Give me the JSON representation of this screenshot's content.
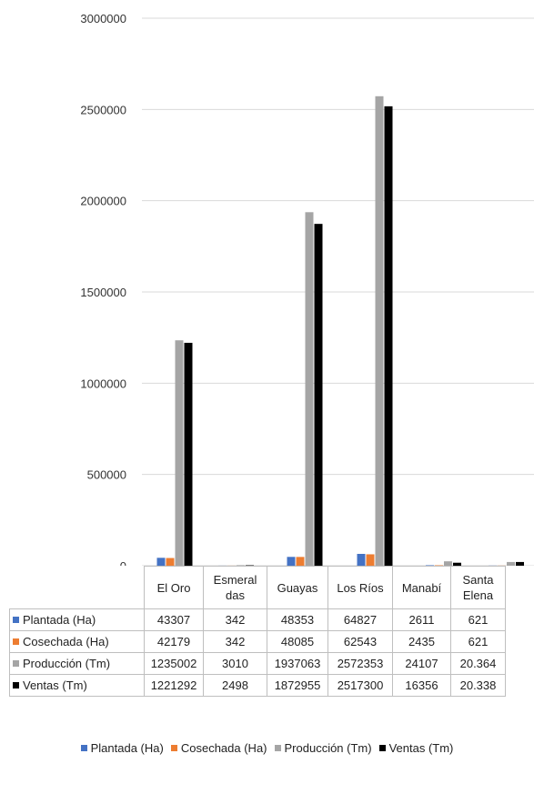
{
  "chart_data": {
    "type": "bar",
    "categories": [
      "El Oro",
      "Esmeraldas",
      "Guayas",
      "Los Ríos",
      "Manabí",
      "Santa Elena"
    ],
    "category_labels": [
      [
        "El Oro"
      ],
      [
        "Esmeral",
        "das"
      ],
      [
        "Guayas"
      ],
      [
        "Los Ríos"
      ],
      [
        "Manabí"
      ],
      [
        "Santa",
        "Elena"
      ]
    ],
    "series": [
      {
        "name": "Plantada (Ha)",
        "color": "#4472C4",
        "values": [
          43307,
          342,
          48353,
          64827,
          2611,
          621
        ],
        "labels": [
          "43307",
          "342",
          "48353",
          "64827",
          "2611",
          "621"
        ]
      },
      {
        "name": "Cosechada (Ha)",
        "color": "#ED7D31",
        "values": [
          42179,
          342,
          48085,
          62543,
          2435,
          621
        ],
        "labels": [
          "42179",
          "342",
          "48085",
          "62543",
          "2435",
          "621"
        ]
      },
      {
        "name": "Producción (Tm)",
        "color": "#A5A5A5",
        "values": [
          1235002,
          3010,
          1937063,
          2572353,
          24107,
          20364
        ],
        "labels": [
          "1235002",
          "3010",
          "1937063",
          "2572353",
          "24107",
          "20.364"
        ]
      },
      {
        "name": "Ventas (Tm)",
        "color": "#000000",
        "values": [
          1221292,
          2498,
          1872955,
          2517300,
          16356,
          20338
        ],
        "labels": [
          "1221292",
          "2498",
          "1872955",
          "2517300",
          "16356",
          "20.338"
        ]
      }
    ],
    "ylim": [
      0,
      3000000
    ],
    "yticks": [
      "0",
      "500000",
      "1000000",
      "1500000",
      "2000000",
      "2500000",
      "3000000"
    ],
    "grid": true,
    "data_table": true,
    "legend_position": "bottom"
  }
}
